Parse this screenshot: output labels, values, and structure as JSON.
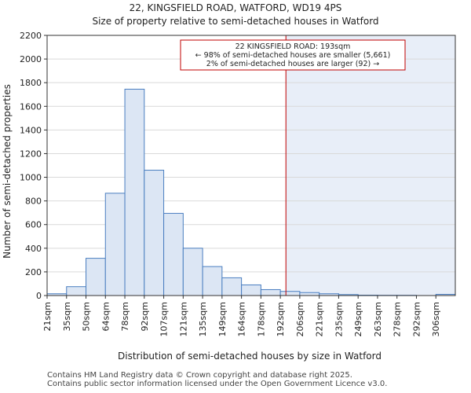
{
  "chart_data": {
    "type": "bar",
    "title": "22, KINGSFIELD ROAD, WATFORD, WD19 4PS",
    "subtitle": "Size of property relative to semi-detached houses in Watford",
    "xlabel": "Distribution of semi-detached houses by size in Watford",
    "ylabel": "Number of semi-detached properties",
    "ylim": [
      0,
      2200
    ],
    "yticks": [
      0,
      200,
      400,
      600,
      800,
      1000,
      1200,
      1400,
      1600,
      1800,
      2000,
      2200
    ],
    "categories": [
      "21sqm",
      "35sqm",
      "50sqm",
      "64sqm",
      "78sqm",
      "92sqm",
      "107sqm",
      "121sqm",
      "135sqm",
      "149sqm",
      "164sqm",
      "178sqm",
      "192sqm",
      "206sqm",
      "221sqm",
      "235sqm",
      "249sqm",
      "263sqm",
      "278sqm",
      "292sqm",
      "306sqm"
    ],
    "values": [
      15,
      75,
      315,
      865,
      1745,
      1060,
      695,
      400,
      245,
      150,
      90,
      50,
      35,
      25,
      15,
      8,
      3,
      2,
      2,
      0,
      10
    ],
    "grid": true,
    "marker": {
      "value_sqm": 193,
      "line_color": "#c00000",
      "annotation_lines": [
        "22 KINGSFIELD ROAD: 193sqm",
        "← 98% of semi-detached houses are smaller (5,661)",
        "2% of semi-detached houses are larger (92) →"
      ]
    },
    "colors": {
      "bar_fill": "#dce6f4",
      "bar_stroke": "#4a7ec0",
      "shade": "#e8eef8",
      "grid": "#d9d9d9"
    }
  },
  "footer": {
    "line1": "Contains HM Land Registry data © Crown copyright and database right 2025.",
    "line2": "Contains public sector information licensed under the Open Government Licence v3.0."
  }
}
